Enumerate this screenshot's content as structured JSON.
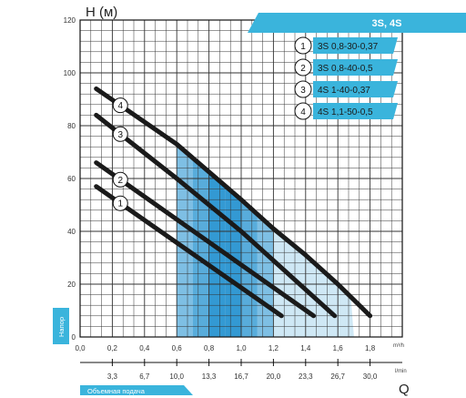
{
  "chart_data": {
    "type": "line",
    "title": "3S, 4S",
    "ylabel": "H (м)",
    "xlabel": "Q",
    "x_unit": "m³/h",
    "x2_unit": "l/min",
    "ylim": [
      0,
      120
    ],
    "xlim": [
      0,
      2.0
    ],
    "y_ticks": [
      "0",
      "20",
      "40",
      "60",
      "80",
      "100",
      "120"
    ],
    "x_ticks": [
      "0,0",
      "0,2",
      "0,4",
      "0,6",
      "0,8",
      "1,0",
      "1,2",
      "1,4",
      "1,6",
      "1,8"
    ],
    "x2_ticks": [
      "3,3",
      "6,7",
      "10,0",
      "13,3",
      "16,7",
      "20,0",
      "23,3",
      "26,7",
      "30,0"
    ],
    "y_band_label": "Напор",
    "x_band_label": "Объемная подача",
    "grid": true,
    "legend_position": "top-right",
    "highlight_region": {
      "x_start": 0.6,
      "x_end": 1.2
    },
    "series": [
      {
        "name": "3S 0,8-30-0,37",
        "marker": "1",
        "x": [
          0.1,
          1.25
        ],
        "y": [
          57,
          8
        ]
      },
      {
        "name": "3S 0,8-40-0,5",
        "marker": "2",
        "x": [
          0.1,
          1.45
        ],
        "y": [
          66,
          8
        ]
      },
      {
        "name": "4S 1-40-0,37",
        "marker": "3",
        "x": [
          0.1,
          0.6,
          1.0,
          1.58
        ],
        "y": [
          84,
          60,
          40,
          8
        ]
      },
      {
        "name": "4S 1,1-50-0,5",
        "marker": "4",
        "x": [
          0.1,
          0.6,
          1.0,
          1.2,
          1.4,
          1.6,
          1.8
        ],
        "y": [
          94,
          73,
          52,
          41,
          31,
          20,
          8
        ]
      }
    ]
  },
  "colors": {
    "accent": "#3ab4dc",
    "curve": "#1a1a1a",
    "grid": "#333333",
    "highlight_dark": "#1f8fcf",
    "highlight_light": "#cfe8f5"
  }
}
